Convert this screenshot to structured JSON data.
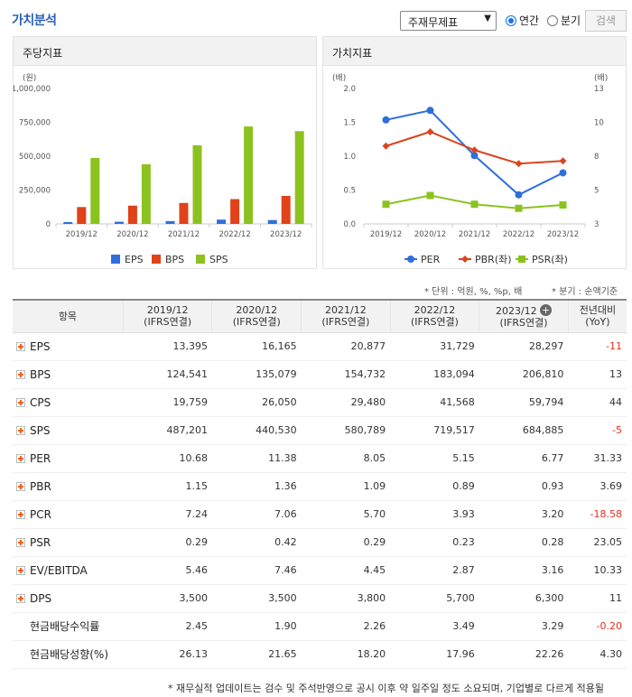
{
  "header": {
    "title": "가치분석",
    "select_value": "주재무제표",
    "radio_annual": "연간",
    "radio_quarter": "분기",
    "search_label": "검색"
  },
  "panel_left": {
    "title": "주당지표",
    "unit": "(원)"
  },
  "panel_right": {
    "title": "가치지표",
    "unit_left": "(배)",
    "unit_right": "(배)"
  },
  "chart_data": [
    {
      "type": "bar",
      "title": "주당지표",
      "ylabel": "(원)",
      "categories": [
        "2019/12",
        "2020/12",
        "2021/12",
        "2022/12",
        "2023/12"
      ],
      "ylim": [
        0,
        1000000
      ],
      "yticks": [
        "1,000,000",
        "750,000",
        "500,000",
        "250,000",
        "0"
      ],
      "series": [
        {
          "name": "EPS",
          "color": "#2f6fdb",
          "values": [
            13395,
            16165,
            20877,
            31729,
            28297
          ]
        },
        {
          "name": "BPS",
          "color": "#e0421a",
          "values": [
            124541,
            135079,
            154732,
            183094,
            206810
          ]
        },
        {
          "name": "SPS",
          "color": "#8cc21f",
          "values": [
            487201,
            440530,
            580789,
            719517,
            684885
          ]
        }
      ],
      "legend": "bottom"
    },
    {
      "type": "line",
      "title": "가치지표",
      "categories": [
        "2019/12",
        "2020/12",
        "2021/12",
        "2022/12",
        "2023/12"
      ],
      "ylim_left": [
        0,
        2.0
      ],
      "yticks_left": [
        "2.0",
        "1.5",
        "1.0",
        "0.5",
        "0.0"
      ],
      "ylim_right": [
        3,
        13
      ],
      "yticks_right": [
        "13",
        "10",
        "8",
        "5",
        "3"
      ],
      "series": [
        {
          "name": "PER",
          "axis": "right",
          "color": "#2f6fdb",
          "marker": "circle",
          "values": [
            10.68,
            11.38,
            8.05,
            5.15,
            6.77
          ]
        },
        {
          "name": "PBR(좌)",
          "axis": "left",
          "color": "#d9451e",
          "marker": "diamond",
          "values": [
            1.15,
            1.36,
            1.09,
            0.89,
            0.93
          ]
        },
        {
          "name": "PSR(좌)",
          "axis": "left",
          "color": "#8cc21f",
          "marker": "square",
          "values": [
            0.29,
            0.42,
            0.29,
            0.23,
            0.28
          ]
        }
      ],
      "legend": "bottom"
    }
  ],
  "notes": {
    "unit": "* 단위 : 억원, %, %p, 배",
    "quarter": "* 분기 : 순액기준"
  },
  "table": {
    "headers": [
      {
        "l1": "항목",
        "l2": ""
      },
      {
        "l1": "2019/12",
        "l2": "(IFRS연결)"
      },
      {
        "l1": "2020/12",
        "l2": "(IFRS연결)"
      },
      {
        "l1": "2021/12",
        "l2": "(IFRS연결)"
      },
      {
        "l1": "2022/12",
        "l2": "(IFRS연결)"
      },
      {
        "l1": "2023/12",
        "l2": "(IFRS연결)"
      },
      {
        "l1": "전년대비",
        "l2": "(YoY)"
      }
    ],
    "rows": [
      {
        "label": "EPS",
        "expand": true,
        "values": [
          "13,395",
          "16,165",
          "20,877",
          "31,729",
          "28,297",
          "-11"
        ]
      },
      {
        "label": "BPS",
        "expand": true,
        "values": [
          "124,541",
          "135,079",
          "154,732",
          "183,094",
          "206,810",
          "13"
        ]
      },
      {
        "label": "CPS",
        "expand": true,
        "values": [
          "19,759",
          "26,050",
          "29,480",
          "41,568",
          "59,794",
          "44"
        ]
      },
      {
        "label": "SPS",
        "expand": true,
        "values": [
          "487,201",
          "440,530",
          "580,789",
          "719,517",
          "684,885",
          "-5"
        ]
      },
      {
        "label": "PER",
        "expand": true,
        "values": [
          "10.68",
          "11.38",
          "8.05",
          "5.15",
          "6.77",
          "31.33"
        ]
      },
      {
        "label": "PBR",
        "expand": true,
        "values": [
          "1.15",
          "1.36",
          "1.09",
          "0.89",
          "0.93",
          "3.69"
        ]
      },
      {
        "label": "PCR",
        "expand": true,
        "values": [
          "7.24",
          "7.06",
          "5.70",
          "3.93",
          "3.20",
          "-18.58"
        ]
      },
      {
        "label": "PSR",
        "expand": true,
        "values": [
          "0.29",
          "0.42",
          "0.29",
          "0.23",
          "0.28",
          "23.05"
        ]
      },
      {
        "label": "EV/EBITDA",
        "expand": true,
        "values": [
          "5.46",
          "7.46",
          "4.45",
          "2.87",
          "3.16",
          "10.33"
        ]
      },
      {
        "label": "DPS",
        "expand": true,
        "values": [
          "3,500",
          "3,500",
          "3,800",
          "5,700",
          "6,300",
          "11"
        ]
      },
      {
        "label": "현금배당수익률",
        "expand": false,
        "values": [
          "2.45",
          "1.90",
          "2.26",
          "3.49",
          "3.29",
          "-0.20"
        ]
      },
      {
        "label": "현금배당성향(%)",
        "expand": false,
        "values": [
          "26.13",
          "21.65",
          "18.20",
          "17.96",
          "22.26",
          "4.30"
        ]
      }
    ]
  },
  "footer": "* 재무실적 업데이트는 검수 및 주석반영으로 공시 이후 약 일주일 정도 소요되며, 기업별로 다르게 적용될"
}
